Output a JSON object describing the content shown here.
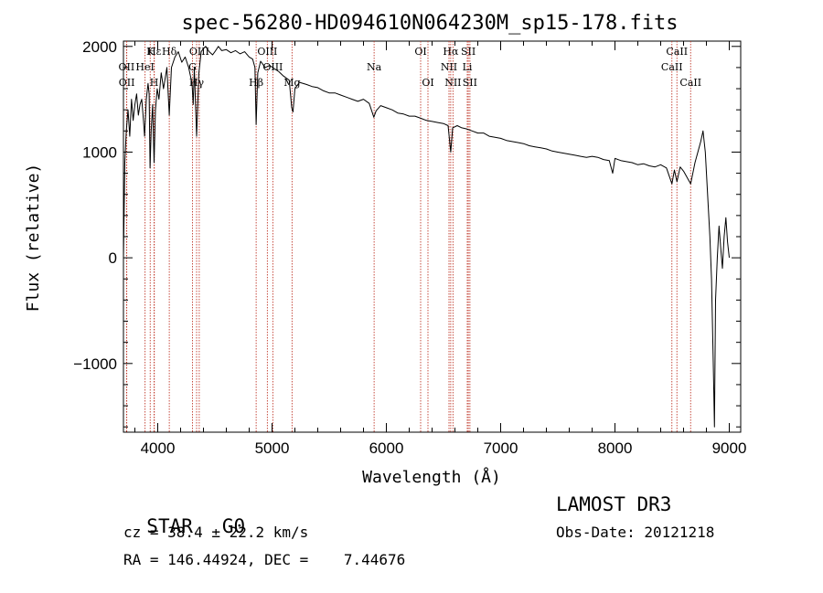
{
  "chart_data": {
    "type": "line",
    "title": "spec-56280-HD094610N064230M_sp15-178.fits",
    "xlabel": "Wavelength (Å)",
    "ylabel": "Flux (relative)",
    "xlim": [
      3700,
      9100
    ],
    "ylim": [
      -1650,
      2050
    ],
    "x_ticks": [
      4000,
      5000,
      6000,
      7000,
      8000,
      9000
    ],
    "x_tick_labels": [
      "4000",
      "5000",
      "6000",
      "7000",
      "8000",
      "9000"
    ],
    "y_ticks": [
      -1000,
      0,
      1000,
      2000
    ],
    "y_tick_labels": [
      "−1000",
      "0",
      "1000",
      "2000"
    ],
    "grid": false,
    "series": [
      {
        "name": "flux",
        "color": "#000000",
        "points": [
          [
            3700,
            0
          ],
          [
            3712,
            900
          ],
          [
            3725,
            1200
          ],
          [
            3740,
            1400
          ],
          [
            3755,
            1150
          ],
          [
            3770,
            1500
          ],
          [
            3785,
            1300
          ],
          [
            3800,
            1450
          ],
          [
            3815,
            1550
          ],
          [
            3830,
            1350
          ],
          [
            3845,
            1450
          ],
          [
            3860,
            1500
          ],
          [
            3875,
            1300
          ],
          [
            3885,
            1150
          ],
          [
            3900,
            1500
          ],
          [
            3915,
            1650
          ],
          [
            3925,
            1550
          ],
          [
            3933,
            850
          ],
          [
            3942,
            1200
          ],
          [
            3955,
            1450
          ],
          [
            3968,
            900
          ],
          [
            3980,
            1400
          ],
          [
            3995,
            1600
          ],
          [
            4010,
            1500
          ],
          [
            4030,
            1750
          ],
          [
            4050,
            1600
          ],
          [
            4080,
            1800
          ],
          [
            4101,
            1350
          ],
          [
            4120,
            1800
          ],
          [
            4150,
            1900
          ],
          [
            4180,
            1950
          ],
          [
            4210,
            1850
          ],
          [
            4240,
            1900
          ],
          [
            4270,
            1800
          ],
          [
            4300,
            1650
          ],
          [
            4310,
            1450
          ],
          [
            4320,
            1800
          ],
          [
            4340,
            1150
          ],
          [
            4360,
            1750
          ],
          [
            4380,
            1950
          ],
          [
            4400,
            1980
          ],
          [
            4420,
            2000
          ],
          [
            4450,
            1950
          ],
          [
            4480,
            1920
          ],
          [
            4500,
            1950
          ],
          [
            4530,
            2000
          ],
          [
            4560,
            1960
          ],
          [
            4600,
            1970
          ],
          [
            4640,
            1940
          ],
          [
            4680,
            1960
          ],
          [
            4720,
            1930
          ],
          [
            4760,
            1950
          ],
          [
            4800,
            1900
          ],
          [
            4830,
            1880
          ],
          [
            4850,
            1800
          ],
          [
            4861,
            1260
          ],
          [
            4875,
            1750
          ],
          [
            4900,
            1860
          ],
          [
            4940,
            1800
          ],
          [
            4980,
            1820
          ],
          [
            5020,
            1790
          ],
          [
            5060,
            1760
          ],
          [
            5100,
            1720
          ],
          [
            5150,
            1680
          ],
          [
            5172,
            1420
          ],
          [
            5183,
            1380
          ],
          [
            5200,
            1600
          ],
          [
            5240,
            1660
          ],
          [
            5300,
            1640
          ],
          [
            5350,
            1620
          ],
          [
            5400,
            1610
          ],
          [
            5450,
            1580
          ],
          [
            5500,
            1560
          ],
          [
            5550,
            1560
          ],
          [
            5600,
            1540
          ],
          [
            5650,
            1520
          ],
          [
            5700,
            1500
          ],
          [
            5750,
            1480
          ],
          [
            5800,
            1500
          ],
          [
            5850,
            1460
          ],
          [
            5890,
            1330
          ],
          [
            5910,
            1390
          ],
          [
            5950,
            1440
          ],
          [
            6000,
            1420
          ],
          [
            6050,
            1400
          ],
          [
            6100,
            1370
          ],
          [
            6150,
            1360
          ],
          [
            6200,
            1340
          ],
          [
            6250,
            1340
          ],
          [
            6300,
            1320
          ],
          [
            6350,
            1300
          ],
          [
            6400,
            1290
          ],
          [
            6450,
            1280
          ],
          [
            6500,
            1270
          ],
          [
            6540,
            1250
          ],
          [
            6563,
            1000
          ],
          [
            6580,
            1230
          ],
          [
            6620,
            1250
          ],
          [
            6660,
            1230
          ],
          [
            6700,
            1220
          ],
          [
            6750,
            1200
          ],
          [
            6800,
            1180
          ],
          [
            6850,
            1180
          ],
          [
            6900,
            1150
          ],
          [
            6950,
            1140
          ],
          [
            7000,
            1130
          ],
          [
            7050,
            1110
          ],
          [
            7100,
            1100
          ],
          [
            7150,
            1090
          ],
          [
            7200,
            1080
          ],
          [
            7250,
            1060
          ],
          [
            7300,
            1050
          ],
          [
            7350,
            1040
          ],
          [
            7400,
            1030
          ],
          [
            7450,
            1010
          ],
          [
            7500,
            1000
          ],
          [
            7550,
            990
          ],
          [
            7600,
            980
          ],
          [
            7650,
            970
          ],
          [
            7700,
            960
          ],
          [
            7750,
            950
          ],
          [
            7800,
            960
          ],
          [
            7850,
            950
          ],
          [
            7900,
            930
          ],
          [
            7950,
            920
          ],
          [
            7980,
            800
          ],
          [
            8000,
            940
          ],
          [
            8050,
            920
          ],
          [
            8100,
            910
          ],
          [
            8150,
            900
          ],
          [
            8200,
            880
          ],
          [
            8250,
            890
          ],
          [
            8300,
            870
          ],
          [
            8350,
            860
          ],
          [
            8400,
            880
          ],
          [
            8450,
            850
          ],
          [
            8498,
            700
          ],
          [
            8520,
            830
          ],
          [
            8542,
            720
          ],
          [
            8570,
            860
          ],
          [
            8600,
            820
          ],
          [
            8662,
            700
          ],
          [
            8700,
            900
          ],
          [
            8750,
            1100
          ],
          [
            8770,
            1200
          ],
          [
            8790,
            1000
          ],
          [
            8810,
            600
          ],
          [
            8830,
            200
          ],
          [
            8845,
            -200
          ],
          [
            8860,
            -1000
          ],
          [
            8870,
            -1600
          ],
          [
            8880,
            -400
          ],
          [
            8895,
            0
          ],
          [
            8910,
            300
          ],
          [
            8925,
            100
          ],
          [
            8940,
            -100
          ],
          [
            8955,
            200
          ],
          [
            8970,
            380
          ],
          [
            8985,
            150
          ],
          [
            9000,
            0
          ]
        ]
      }
    ],
    "lines": [
      {
        "label": "Hε",
        "wavelength": 3970,
        "row": 0
      },
      {
        "label": "K",
        "wavelength": 3934,
        "row": 0
      },
      {
        "label": "H",
        "wavelength": 3968,
        "row": 2
      },
      {
        "label": "Hδ",
        "wavelength": 4101,
        "row": 0
      },
      {
        "label": "OII",
        "wavelength": 3727,
        "row": 1
      },
      {
        "label": "OII",
        "wavelength": 3729,
        "row": 2
      },
      {
        "label": "HeI",
        "wavelength": 3889,
        "row": 1
      },
      {
        "label": "Hγ",
        "wavelength": 4340,
        "row": 2
      },
      {
        "label": "OIII",
        "wavelength": 4363,
        "row": 0
      },
      {
        "label": "G",
        "wavelength": 4304,
        "row": 1
      },
      {
        "label": "OIII",
        "wavelength": 4959,
        "row": 0
      },
      {
        "label": "OIII",
        "wavelength": 5007,
        "row": 1
      },
      {
        "label": "Hβ",
        "wavelength": 4861,
        "row": 2
      },
      {
        "label": "Mg",
        "wavelength": 5175,
        "row": 2
      },
      {
        "label": "Na",
        "wavelength": 5893,
        "row": 1
      },
      {
        "label": "OI",
        "wavelength": 6300,
        "row": 0
      },
      {
        "label": "OI",
        "wavelength": 6364,
        "row": 2
      },
      {
        "label": "Hα",
        "wavelength": 6563,
        "row": 0
      },
      {
        "label": "NII",
        "wavelength": 6548,
        "row": 1
      },
      {
        "label": "NII",
        "wavelength": 6583,
        "row": 2
      },
      {
        "label": "SII",
        "wavelength": 6717,
        "row": 0
      },
      {
        "label": "Li",
        "wavelength": 6708,
        "row": 1
      },
      {
        "label": "SII",
        "wavelength": 6731,
        "row": 2
      },
      {
        "label": "CaII",
        "wavelength": 8542,
        "row": 0
      },
      {
        "label": "CaII",
        "wavelength": 8498,
        "row": 1
      },
      {
        "label": "CaII",
        "wavelength": 8662,
        "row": 2
      }
    ]
  },
  "info": {
    "class": "STAR",
    "subclass": "G0",
    "survey": "LAMOST DR3",
    "cz": "cz = 38.4 ± 22.2 km/s",
    "obs_date": "Obs-Date: 20121218",
    "coords": "RA = 146.44924, DEC =    7.44676"
  },
  "colors": {
    "axis": "#000000",
    "spectrum": "#000000",
    "line_marker": "#c0392b",
    "background": "#ffffff"
  }
}
